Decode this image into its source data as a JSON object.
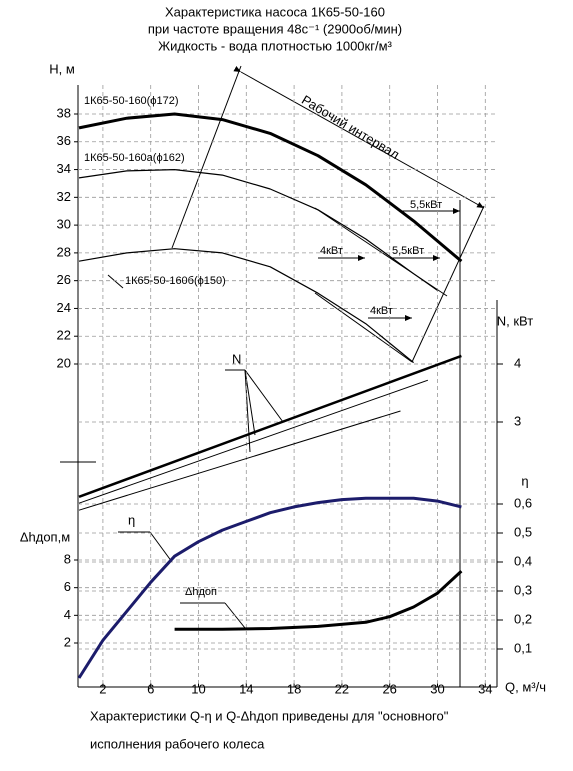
{
  "chart_data": {
    "type": "line",
    "title": [
      "Характеристика насоса 1К65-50-160",
      "при частоте вращения 48с⁻¹ (2900об/мин)",
      "Жидкость - вода плотностью 1000кг/м³"
    ],
    "xlabel": "Q, м³/ч",
    "xlim": [
      0,
      34
    ],
    "xticks": [
      2,
      6,
      10,
      14,
      18,
      22,
      26,
      30,
      34
    ],
    "grid": true,
    "axes": [
      {
        "key": "H",
        "label": "H, м",
        "lim": [
          20,
          38
        ],
        "ticks": [
          20,
          22,
          24,
          26,
          28,
          30,
          32,
          34,
          36,
          38
        ]
      },
      {
        "key": "N",
        "label": "N, кВт",
        "lim": [
          3,
          4
        ],
        "ticks": [
          3,
          4
        ]
      },
      {
        "key": "eta",
        "label": "η",
        "lim": [
          0.1,
          0.6
        ],
        "ticks": [
          {
            "value": 0.1,
            "label": "0,1"
          },
          {
            "value": 0.2,
            "label": "0,2"
          },
          {
            "value": 0.3,
            "label": "0,3"
          },
          {
            "value": 0.4,
            "label": "0,4"
          },
          {
            "value": 0.5,
            "label": "0,5"
          },
          {
            "value": 0.6,
            "label": "0,6"
          }
        ]
      },
      {
        "key": "dh",
        "label": "Δhдоп,м",
        "lim": [
          2,
          8
        ],
        "ticks": [
          2,
          4,
          6,
          8
        ]
      }
    ],
    "series": [
      {
        "axis": "H",
        "color": "#000000",
        "width": 3,
        "x": [
          0,
          4,
          8,
          12,
          16,
          20,
          24,
          28,
          32
        ],
        "values": [
          37,
          37.7,
          38,
          37.6,
          36.6,
          35,
          32.9,
          30.3,
          27.4
        ]
      },
      {
        "axis": "H",
        "color": "#000000",
        "width": 1.2,
        "x": [
          0,
          4,
          8,
          12,
          16,
          20,
          24,
          28,
          30
        ],
        "values": [
          33.4,
          33.9,
          34,
          33.6,
          32.6,
          31.1,
          29,
          26.5,
          25.3
        ]
      },
      {
        "axis": "H",
        "color": "#000000",
        "width": 1.2,
        "x": [
          0,
          4,
          8,
          12,
          16,
          20,
          24,
          28
        ],
        "values": [
          27.4,
          28,
          28.3,
          28,
          27,
          25.1,
          22.9,
          20.1
        ]
      },
      {
        "axis": "N",
        "color": "#000000",
        "width": 2.5,
        "x": [
          0,
          32
        ],
        "values": [
          1.71,
          4.14
        ]
      },
      {
        "axis": "N",
        "color": "#000000",
        "width": 1,
        "x": [
          0,
          29.2
        ],
        "values": [
          1.6,
          3.72
        ]
      },
      {
        "axis": "N",
        "color": "#000000",
        "width": 1,
        "x": [
          0,
          26.9
        ],
        "values": [
          1.48,
          3.19
        ]
      },
      {
        "axis": "eta",
        "color": "#1c1c6b",
        "width": 3,
        "x": [
          0,
          2,
          4,
          6,
          8,
          10,
          12,
          14,
          16,
          18,
          20,
          22,
          24,
          26,
          28,
          30,
          32
        ],
        "values": [
          0,
          0.13,
          0.23,
          0.33,
          0.42,
          0.47,
          0.51,
          0.54,
          0.57,
          0.59,
          0.605,
          0.615,
          0.62,
          0.62,
          0.62,
          0.61,
          0.59
        ]
      },
      {
        "axis": "dh",
        "color": "#000000",
        "width": 3,
        "x": [
          8,
          12,
          16,
          20,
          24,
          26,
          28,
          30,
          32
        ],
        "values": [
          3,
          3,
          3.05,
          3.2,
          3.5,
          3.9,
          4.6,
          5.6,
          7.2
        ]
      }
    ],
    "annotations": [
      "1К65-50-160(ϕ172)",
      "1К65-50-160а(ϕ162)",
      "1К65-50-160б(ϕ150)",
      "Рабочий интервал",
      "5,5кВт",
      "4кВт",
      "5,5кВт",
      "4кВт",
      "N",
      "η",
      "Δhдоп"
    ],
    "footer": [
      "Характеристики Q-η и Q-Δhдоп приведены для \"основного\"",
      "исполнения рабочего колеса"
    ]
  }
}
